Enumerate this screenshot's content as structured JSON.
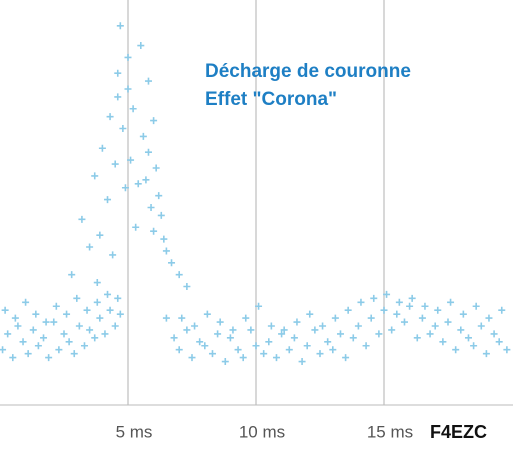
{
  "chart_data": {
    "type": "scatter",
    "annotations": [
      "Décharge de couronne",
      "Effet \"Corona\""
    ],
    "signature": "F4EZC",
    "xlim": [
      0,
      20
    ],
    "ylim": [
      0,
      100
    ],
    "xticks": [
      {
        "value": 5,
        "label": "5 ms"
      },
      {
        "value": 10,
        "label": "10 ms"
      },
      {
        "value": 15,
        "label": "15 ms"
      }
    ],
    "grid": true,
    "color": "#8ccbe8",
    "x": [
      0.1,
      0.3,
      0.5,
      0.7,
      0.9,
      1.1,
      1.3,
      1.5,
      1.7,
      1.9,
      2.1,
      2.3,
      2.5,
      2.7,
      2.9,
      3.1,
      3.3,
      3.5,
      3.7,
      3.9,
      4.1,
      4.3,
      4.5,
      4.7,
      6.5,
      6.8,
      7.0,
      7.3,
      7.5,
      7.8,
      8.0,
      8.3,
      8.5,
      8.8,
      9.0,
      9.3,
      9.5,
      9.8,
      10.0,
      10.3,
      10.5,
      10.8,
      11.0,
      11.3,
      11.5,
      11.8,
      12.0,
      12.3,
      12.5,
      12.8,
      13.0,
      13.3,
      13.5,
      13.8,
      14.0,
      14.3,
      14.5,
      14.8,
      15.0,
      15.3,
      15.5,
      15.8,
      16.0,
      16.3,
      16.5,
      16.8,
      17.0,
      17.3,
      17.5,
      17.8,
      18.0,
      18.3,
      18.5,
      18.8,
      19.0,
      19.3,
      19.5,
      19.8,
      0.2,
      0.6,
      1.0,
      1.4,
      1.8,
      2.2,
      2.6,
      3.0,
      3.4,
      3.8,
      4.2,
      4.6,
      7.1,
      7.6,
      8.1,
      8.6,
      9.1,
      9.6,
      10.1,
      10.6,
      11.1,
      11.6,
      12.1,
      12.6,
      13.1,
      13.6,
      14.1,
      14.6,
      15.1,
      15.6,
      16.1,
      16.6,
      17.1,
      17.6,
      18.1,
      18.6,
      19.1,
      19.6,
      2.8,
      3.2,
      3.5,
      3.7,
      3.9,
      4.0,
      4.2,
      4.3,
      4.5,
      4.6,
      4.7,
      4.8,
      4.9,
      5.0,
      5.0,
      5.1,
      5.2,
      5.3,
      5.5,
      5.6,
      5.7,
      5.8,
      5.9,
      6.0,
      6.0,
      6.1,
      6.2,
      6.3,
      6.5,
      6.7,
      7.0,
      7.3,
      4.6,
      5.4,
      4.4,
      3.8,
      5.8,
      6.4
    ],
    "values": [
      14,
      18,
      12,
      20,
      16,
      13,
      19,
      15,
      17,
      12,
      21,
      14,
      18,
      16,
      13,
      20,
      15,
      19,
      17,
      22,
      18,
      24,
      20,
      23,
      22,
      17,
      14,
      19,
      12,
      16,
      15,
      13,
      18,
      11,
      17,
      14,
      12,
      19,
      15,
      13,
      16,
      12,
      18,
      14,
      17,
      11,
      15,
      19,
      13,
      16,
      14,
      18,
      12,
      17,
      20,
      15,
      22,
      18,
      24,
      19,
      23,
      21,
      25,
      17,
      22,
      18,
      20,
      16,
      21,
      14,
      19,
      17,
      15,
      20,
      13,
      18,
      16,
      14,
      24,
      22,
      26,
      23,
      21,
      25,
      23,
      27,
      24,
      26,
      28,
      27,
      22,
      20,
      23,
      21,
      19,
      22,
      25,
      20,
      19,
      21,
      23,
      20,
      22,
      24,
      26,
      27,
      28,
      26,
      27,
      25,
      24,
      26,
      23,
      25,
      22,
      24,
      33,
      47,
      40,
      58,
      43,
      65,
      52,
      73,
      61,
      84,
      96,
      70,
      55,
      80,
      88,
      62,
      75,
      45,
      91,
      68,
      57,
      82,
      50,
      72,
      44,
      60,
      53,
      48,
      39,
      36,
      33,
      30,
      78,
      56,
      38,
      31,
      64,
      42
    ]
  }
}
